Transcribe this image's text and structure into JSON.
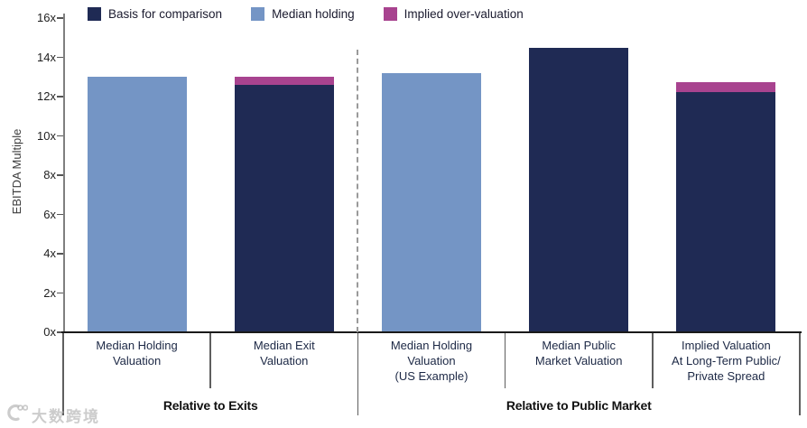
{
  "watermark": {
    "text": "大数跨境"
  },
  "colors": {
    "axis_line": "#1a1a1a",
    "y_axis_line": "#7f7f7f",
    "separator": "#5e5e5e",
    "dashed_divider": "#9a9a9a",
    "category_text": "#1c2845",
    "group_text": "#111111"
  },
  "chart_data": {
    "type": "bar",
    "stacked": true,
    "title": "",
    "ylabel": "EBITDA Multiple",
    "xlabel": "",
    "ylim": [
      0,
      16
    ],
    "ytick_step": 2,
    "ytick_suffix": "x",
    "grid": false,
    "legend_position": "top",
    "legend": [
      {
        "label": "Basis for comparison",
        "color": "#1f2a54"
      },
      {
        "label": "Median holding",
        "color": "#7495c5"
      },
      {
        "label": "Implied over-valuation",
        "color": "#a8438f"
      }
    ],
    "bars": [
      {
        "label_lines": [
          "Median Holding",
          "Valuation"
        ],
        "segments": [
          {
            "series": 1,
            "value": 13.0
          }
        ],
        "total": 13.0
      },
      {
        "label_lines": [
          "Median Exit",
          "Valuation"
        ],
        "segments": [
          {
            "series": 0,
            "value": 12.6
          },
          {
            "series": 2,
            "value": 0.4
          }
        ],
        "total": 13.0
      },
      {
        "label_lines": [
          "Median Holding",
          "Valuation",
          "(US Example)"
        ],
        "segments": [
          {
            "series": 1,
            "value": 13.2
          }
        ],
        "total": 13.2
      },
      {
        "label_lines": [
          "Median Public",
          "Market Valuation"
        ],
        "segments": [
          {
            "series": 0,
            "value": 14.5
          }
        ],
        "total": 14.5
      },
      {
        "label_lines": [
          "Implied Valuation",
          "At Long-Term Public/",
          "Private Spread"
        ],
        "segments": [
          {
            "series": 0,
            "value": 12.25
          },
          {
            "series": 2,
            "value": 0.5
          }
        ],
        "total": 12.75
      }
    ],
    "groups": [
      {
        "label": "Relative to Exits",
        "span": [
          0,
          2
        ]
      },
      {
        "label": "Relative to Public Market",
        "span": [
          2,
          5
        ]
      }
    ]
  }
}
